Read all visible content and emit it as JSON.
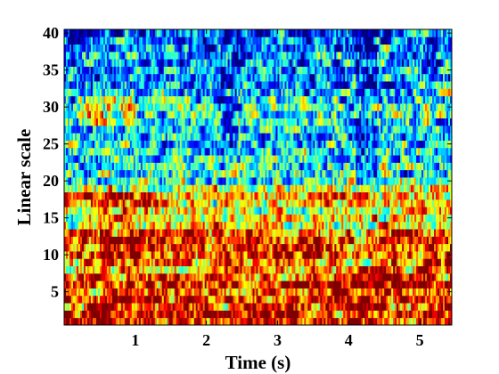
{
  "chart_data": {
    "type": "heatmap",
    "title": "",
    "xlabel": "Time (s)",
    "ylabel": "Linear scale",
    "xlim": [
      0,
      5.45
    ],
    "ylim": [
      0.5,
      40.5
    ],
    "xticks": [
      1,
      2,
      3,
      4,
      5
    ],
    "yticks": [
      5,
      10,
      15,
      20,
      25,
      30,
      35,
      40
    ],
    "colormap": "jet",
    "grid": false,
    "legend": "none",
    "rows": 40,
    "cols": 218,
    "value_range": [
      0,
      1
    ],
    "row_profile": [
      0.86,
      0.88,
      0.84,
      0.83,
      0.8,
      0.82,
      0.78,
      0.7,
      0.74,
      0.78,
      0.8,
      0.82,
      0.78,
      0.62,
      0.64,
      0.6,
      0.66,
      0.7,
      0.58,
      0.45,
      0.42,
      0.4,
      0.42,
      0.38,
      0.36,
      0.34,
      0.36,
      0.38,
      0.4,
      0.42,
      0.36,
      0.34,
      0.3,
      0.28,
      0.3,
      0.28,
      0.3,
      0.26,
      0.24,
      0.22
    ],
    "features": [
      {
        "t0": 2.2,
        "t1": 2.45,
        "s0": 25,
        "s1": 40,
        "delta": -0.12
      },
      {
        "t0": 4.1,
        "t1": 4.4,
        "s0": 20,
        "s1": 40,
        "delta": -0.18
      },
      {
        "t0": 0.3,
        "t1": 1.0,
        "s0": 28,
        "s1": 31,
        "delta": 0.18
      },
      {
        "t0": 0.0,
        "t1": 1.2,
        "s0": 16,
        "s1": 18,
        "delta": 0.16
      },
      {
        "t0": 0.5,
        "t1": 1.4,
        "s0": 10,
        "s1": 13,
        "delta": 0.14
      },
      {
        "t0": 2.2,
        "t1": 3.0,
        "s0": 8,
        "s1": 10,
        "delta": 0.12
      },
      {
        "t0": 3.3,
        "t1": 3.6,
        "s0": 10,
        "s1": 13,
        "delta": 0.14
      },
      {
        "t0": 3.8,
        "t1": 4.6,
        "s0": 3,
        "s1": 8,
        "delta": 0.12
      },
      {
        "t0": 4.6,
        "t1": 5.45,
        "s0": 6,
        "s1": 9,
        "delta": 0.12
      },
      {
        "t0": 4.6,
        "t1": 4.9,
        "s0": 10,
        "s1": 13,
        "delta": 0.12
      }
    ]
  }
}
